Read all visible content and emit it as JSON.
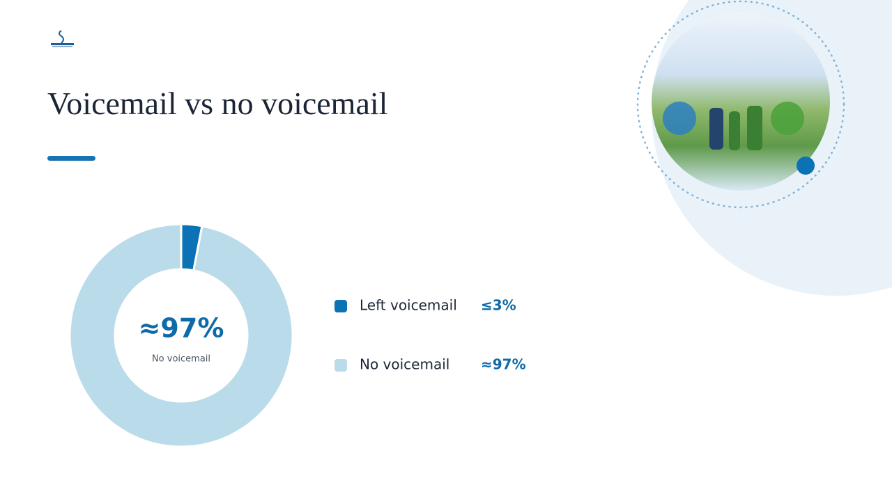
{
  "chart_data": {
    "type": "pie",
    "donut": true,
    "title": "Voicemail vs no voicemail",
    "categories": [
      "Left voicemail",
      "No voicemail"
    ],
    "values": [
      3,
      97
    ],
    "value_labels": [
      "≤3%",
      "≈97%"
    ],
    "colors": [
      "#0b72b5",
      "#badbea"
    ]
  }
}
